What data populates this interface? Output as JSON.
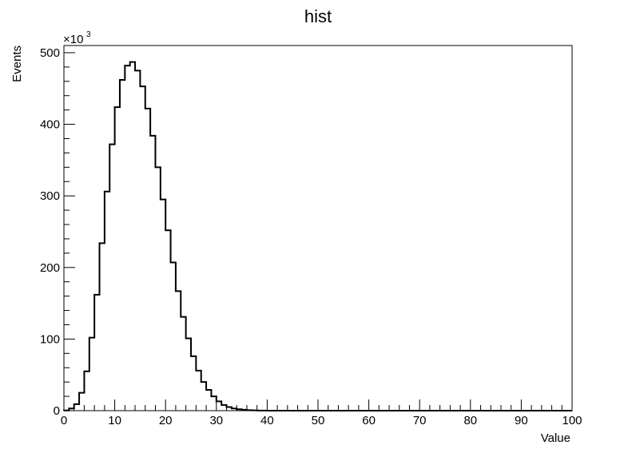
{
  "chart_data": {
    "type": "histogram",
    "title": "hist",
    "xlabel": "Value",
    "ylabel": "Events",
    "yscale_label": "×10",
    "yscale_exponent": "3",
    "xlim": [
      0,
      100
    ],
    "ylim": [
      0,
      510
    ],
    "bin_width": 1,
    "x_ticks": [
      "0",
      "10",
      "20",
      "30",
      "40",
      "50",
      "60",
      "70",
      "80",
      "90",
      "100"
    ],
    "y_ticks": [
      "0",
      "100",
      "200",
      "300",
      "400",
      "500"
    ],
    "x_tick_values": [
      0,
      10,
      20,
      30,
      40,
      50,
      60,
      70,
      80,
      90,
      100
    ],
    "y_tick_values": [
      0,
      100,
      200,
      300,
      400,
      500
    ],
    "bin_edges_start": 0,
    "values": [
      0.3,
      3,
      9,
      25,
      55,
      102,
      162,
      234,
      306,
      372,
      424,
      462,
      482,
      487,
      475,
      453,
      422,
      384,
      340,
      295,
      252,
      207,
      167,
      131,
      101,
      76,
      56,
      40,
      29,
      20,
      13,
      8,
      5,
      3,
      2,
      1.2,
      0.7,
      0.4,
      0.2,
      0.1,
      0.05,
      0,
      0,
      0,
      0,
      0,
      0,
      0,
      0,
      0,
      0,
      0,
      0,
      0,
      0,
      0,
      0,
      0,
      0,
      0,
      0,
      0,
      0,
      0,
      0,
      0,
      0,
      0,
      0,
      0,
      0,
      0,
      0,
      0,
      0,
      0,
      0,
      0,
      0,
      0,
      0,
      0,
      0,
      0,
      0,
      0,
      0,
      0,
      0,
      0,
      0,
      0,
      0,
      0,
      0,
      0,
      0,
      0,
      0,
      0
    ],
    "line_color": "#000000",
    "grid": false
  }
}
